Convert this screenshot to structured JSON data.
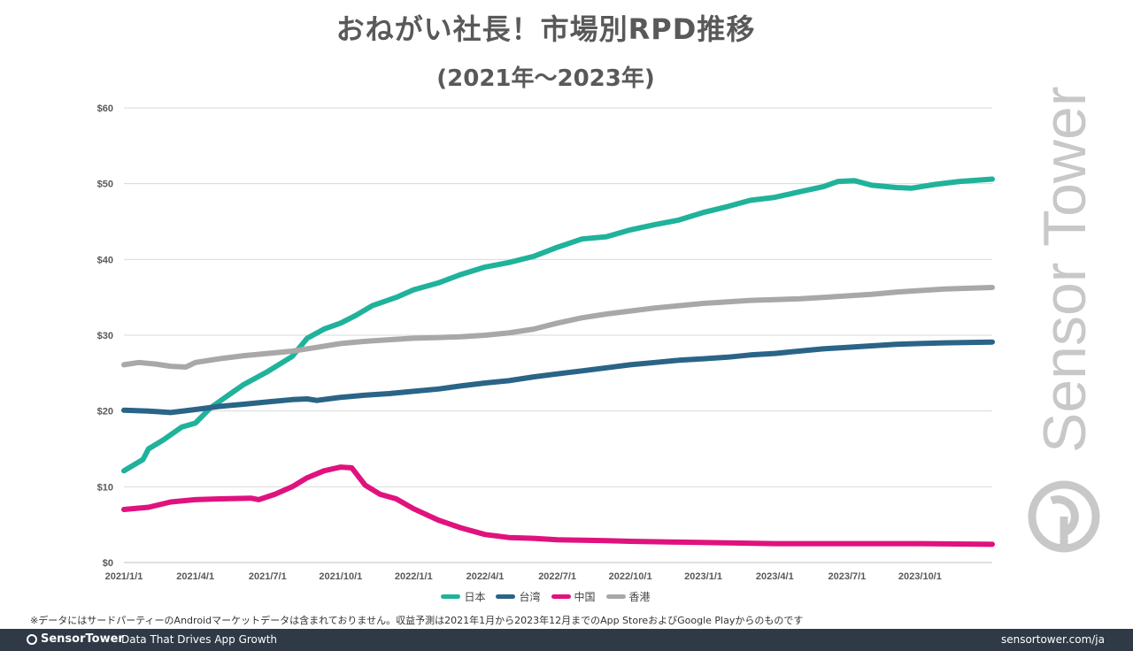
{
  "title": "おねがい社長！市場別RPD推移",
  "subtitle": "(2021年〜2023年)",
  "watermark_text": "Sensor Tower",
  "footnote": "※データにはサードパーティーのAndroidマーケットデータは含まれておりません。収益予測は2021年1月から2023年12月までのApp StoreおよびGoogle Playからのものです",
  "footer": {
    "brand": "SensorTower",
    "tagline": "Data That Drives App Growth",
    "site": "sensortower.com/ja"
  },
  "colors": {
    "japan": "#20b29b",
    "taiwan": "#2a6487",
    "china": "#e0127e",
    "hongkong": "#a8a8a8",
    "grid": "#d9d9d9",
    "footer_bg": "#2f3a46"
  },
  "chart_data": {
    "type": "line",
    "title": "おねがい社長！市場別RPD推移",
    "subtitle": "(2021年〜2023年)",
    "xlabel": "",
    "ylabel": "",
    "x_ticks": [
      "2021/1/1",
      "2021/4/1",
      "2021/7/1",
      "2021/10/1",
      "2022/1/1",
      "2022/4/1",
      "2022/7/1",
      "2022/10/1",
      "2023/1/1",
      "2023/4/1",
      "2023/7/1",
      "2023/10/1"
    ],
    "y_ticks": [
      "$0",
      "$10",
      "$20",
      "$30",
      "$40",
      "$50",
      "$60"
    ],
    "ylim": [
      0,
      60
    ],
    "xlim": [
      "2021-01-01",
      "2023-12-31"
    ],
    "grid": true,
    "legend_position": "bottom-center",
    "series": [
      {
        "name": "日本",
        "color_key": "japan",
        "points": [
          [
            "2021-01-01",
            12.1
          ],
          [
            "2021-01-25",
            13.6
          ],
          [
            "2021-02-01",
            15.0
          ],
          [
            "2021-02-20",
            16.2
          ],
          [
            "2021-03-15",
            17.9
          ],
          [
            "2021-04-01",
            18.4
          ],
          [
            "2021-04-20",
            20.4
          ],
          [
            "2021-05-10",
            21.9
          ],
          [
            "2021-06-01",
            23.5
          ],
          [
            "2021-07-01",
            25.2
          ],
          [
            "2021-08-01",
            27.2
          ],
          [
            "2021-08-20",
            29.6
          ],
          [
            "2021-09-10",
            30.8
          ],
          [
            "2021-10-01",
            31.6
          ],
          [
            "2021-10-20",
            32.6
          ],
          [
            "2021-11-10",
            33.9
          ],
          [
            "2021-12-10",
            35.0
          ],
          [
            "2022-01-01",
            36.0
          ],
          [
            "2022-02-01",
            36.9
          ],
          [
            "2022-03-01",
            38.0
          ],
          [
            "2022-04-01",
            39.0
          ],
          [
            "2022-05-01",
            39.6
          ],
          [
            "2022-06-01",
            40.4
          ],
          [
            "2022-07-01",
            41.6
          ],
          [
            "2022-08-01",
            42.7
          ],
          [
            "2022-09-01",
            43.0
          ],
          [
            "2022-10-01",
            43.9
          ],
          [
            "2022-11-01",
            44.6
          ],
          [
            "2022-12-01",
            45.2
          ],
          [
            "2023-01-01",
            46.2
          ],
          [
            "2023-02-01",
            47.0
          ],
          [
            "2023-03-01",
            47.8
          ],
          [
            "2023-04-01",
            48.2
          ],
          [
            "2023-05-01",
            48.9
          ],
          [
            "2023-06-01",
            49.6
          ],
          [
            "2023-06-20",
            50.3
          ],
          [
            "2023-07-10",
            50.4
          ],
          [
            "2023-08-01",
            49.8
          ],
          [
            "2023-09-01",
            49.5
          ],
          [
            "2023-09-20",
            49.4
          ],
          [
            "2023-10-20",
            49.9
          ],
          [
            "2023-11-20",
            50.3
          ],
          [
            "2023-12-31",
            50.6
          ]
        ]
      },
      {
        "name": "台湾",
        "color_key": "taiwan",
        "points": [
          [
            "2021-01-01",
            20.1
          ],
          [
            "2021-02-01",
            20.0
          ],
          [
            "2021-03-01",
            19.8
          ],
          [
            "2021-04-01",
            20.2
          ],
          [
            "2021-05-01",
            20.6
          ],
          [
            "2021-06-01",
            20.9
          ],
          [
            "2021-07-01",
            21.2
          ],
          [
            "2021-08-01",
            21.5
          ],
          [
            "2021-08-20",
            21.6
          ],
          [
            "2021-09-01",
            21.4
          ],
          [
            "2021-10-01",
            21.8
          ],
          [
            "2021-11-01",
            22.1
          ],
          [
            "2021-12-01",
            22.3
          ],
          [
            "2022-01-01",
            22.6
          ],
          [
            "2022-02-01",
            22.9
          ],
          [
            "2022-03-01",
            23.3
          ],
          [
            "2022-04-01",
            23.7
          ],
          [
            "2022-05-01",
            24.0
          ],
          [
            "2022-06-01",
            24.5
          ],
          [
            "2022-07-01",
            24.9
          ],
          [
            "2022-08-01",
            25.3
          ],
          [
            "2022-09-01",
            25.7
          ],
          [
            "2022-10-01",
            26.1
          ],
          [
            "2022-11-01",
            26.4
          ],
          [
            "2022-12-01",
            26.7
          ],
          [
            "2023-01-01",
            26.9
          ],
          [
            "2023-02-01",
            27.1
          ],
          [
            "2023-03-01",
            27.4
          ],
          [
            "2023-04-01",
            27.6
          ],
          [
            "2023-05-01",
            27.9
          ],
          [
            "2023-06-01",
            28.2
          ],
          [
            "2023-07-01",
            28.4
          ],
          [
            "2023-08-01",
            28.6
          ],
          [
            "2023-09-01",
            28.8
          ],
          [
            "2023-10-01",
            28.9
          ],
          [
            "2023-11-01",
            29.0
          ],
          [
            "2023-12-31",
            29.1
          ]
        ]
      },
      {
        "name": "中国",
        "color_key": "china",
        "points": [
          [
            "2021-01-01",
            7.0
          ],
          [
            "2021-02-01",
            7.3
          ],
          [
            "2021-03-01",
            8.0
          ],
          [
            "2021-04-01",
            8.3
          ],
          [
            "2021-05-01",
            8.4
          ],
          [
            "2021-06-10",
            8.5
          ],
          [
            "2021-06-20",
            8.3
          ],
          [
            "2021-07-10",
            9.0
          ],
          [
            "2021-08-01",
            10.0
          ],
          [
            "2021-08-20",
            11.2
          ],
          [
            "2021-09-10",
            12.1
          ],
          [
            "2021-10-01",
            12.6
          ],
          [
            "2021-10-15",
            12.5
          ],
          [
            "2021-11-01",
            10.2
          ],
          [
            "2021-11-20",
            9.0
          ],
          [
            "2021-12-10",
            8.4
          ],
          [
            "2022-01-01",
            7.1
          ],
          [
            "2022-02-01",
            5.6
          ],
          [
            "2022-03-01",
            4.6
          ],
          [
            "2022-04-01",
            3.7
          ],
          [
            "2022-05-01",
            3.3
          ],
          [
            "2022-06-01",
            3.2
          ],
          [
            "2022-07-01",
            3.0
          ],
          [
            "2022-08-01",
            2.95
          ],
          [
            "2022-09-01",
            2.9
          ],
          [
            "2022-10-01",
            2.8
          ],
          [
            "2022-12-01",
            2.7
          ],
          [
            "2023-02-01",
            2.6
          ],
          [
            "2023-04-01",
            2.5
          ],
          [
            "2023-06-01",
            2.5
          ],
          [
            "2023-08-01",
            2.5
          ],
          [
            "2023-10-01",
            2.5
          ],
          [
            "2023-12-31",
            2.4
          ]
        ]
      },
      {
        "name": "香港",
        "color_key": "hongkong",
        "points": [
          [
            "2021-01-01",
            26.1
          ],
          [
            "2021-01-20",
            26.4
          ],
          [
            "2021-02-10",
            26.2
          ],
          [
            "2021-03-01",
            25.9
          ],
          [
            "2021-03-20",
            25.8
          ],
          [
            "2021-04-01",
            26.4
          ],
          [
            "2021-05-01",
            26.9
          ],
          [
            "2021-06-01",
            27.3
          ],
          [
            "2021-07-01",
            27.6
          ],
          [
            "2021-08-01",
            27.9
          ],
          [
            "2021-09-01",
            28.4
          ],
          [
            "2021-10-01",
            28.9
          ],
          [
            "2021-11-01",
            29.2
          ],
          [
            "2021-12-01",
            29.4
          ],
          [
            "2022-01-01",
            29.6
          ],
          [
            "2022-02-01",
            29.7
          ],
          [
            "2022-03-01",
            29.8
          ],
          [
            "2022-04-01",
            30.0
          ],
          [
            "2022-05-01",
            30.3
          ],
          [
            "2022-06-01",
            30.8
          ],
          [
            "2022-07-01",
            31.6
          ],
          [
            "2022-08-01",
            32.3
          ],
          [
            "2022-09-01",
            32.8
          ],
          [
            "2022-10-01",
            33.2
          ],
          [
            "2022-11-01",
            33.6
          ],
          [
            "2022-12-01",
            33.9
          ],
          [
            "2023-01-01",
            34.2
          ],
          [
            "2023-02-01",
            34.4
          ],
          [
            "2023-03-01",
            34.6
          ],
          [
            "2023-04-01",
            34.7
          ],
          [
            "2023-05-01",
            34.8
          ],
          [
            "2023-06-01",
            35.0
          ],
          [
            "2023-07-01",
            35.2
          ],
          [
            "2023-08-01",
            35.4
          ],
          [
            "2023-09-01",
            35.7
          ],
          [
            "2023-10-01",
            35.9
          ],
          [
            "2023-11-01",
            36.1
          ],
          [
            "2023-12-31",
            36.3
          ]
        ]
      }
    ]
  }
}
